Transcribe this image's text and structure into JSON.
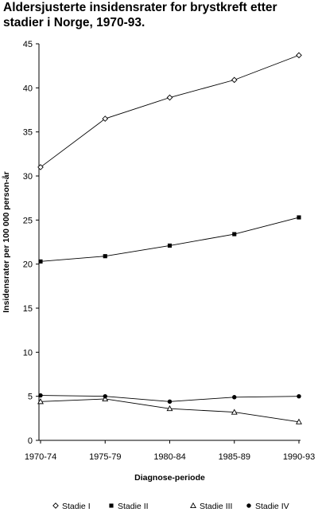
{
  "chart_data": {
    "type": "line",
    "title": "Aldersjusterte insidensrater for brystkreft etter stadier i Norge, 1970-93.",
    "xlabel": "Diagnose-periode",
    "ylabel": "Insidensrater per 100 000 person-år",
    "categories": [
      "1970-74",
      "1975-79",
      "1980-84",
      "1985-89",
      "1990-93"
    ],
    "ylim": [
      0,
      45
    ],
    "yticks": [
      0,
      5,
      10,
      15,
      20,
      25,
      30,
      35,
      40,
      45
    ],
    "grid": false,
    "legend_position": "bottom",
    "series": [
      {
        "name": "Stadie I",
        "marker": "diamond-open",
        "values": [
          31.0,
          36.5,
          38.9,
          40.9,
          43.7
        ]
      },
      {
        "name": "Stadie II",
        "marker": "square-filled",
        "values": [
          20.3,
          20.9,
          22.1,
          23.4,
          25.3
        ]
      },
      {
        "name": "Stadie III",
        "marker": "triangle-open",
        "values": [
          4.4,
          4.7,
          3.6,
          3.2,
          2.1
        ]
      },
      {
        "name": "Stadie IV",
        "marker": "circle-filled",
        "values": [
          5.1,
          5.0,
          4.4,
          4.9,
          5.0
        ]
      }
    ]
  }
}
